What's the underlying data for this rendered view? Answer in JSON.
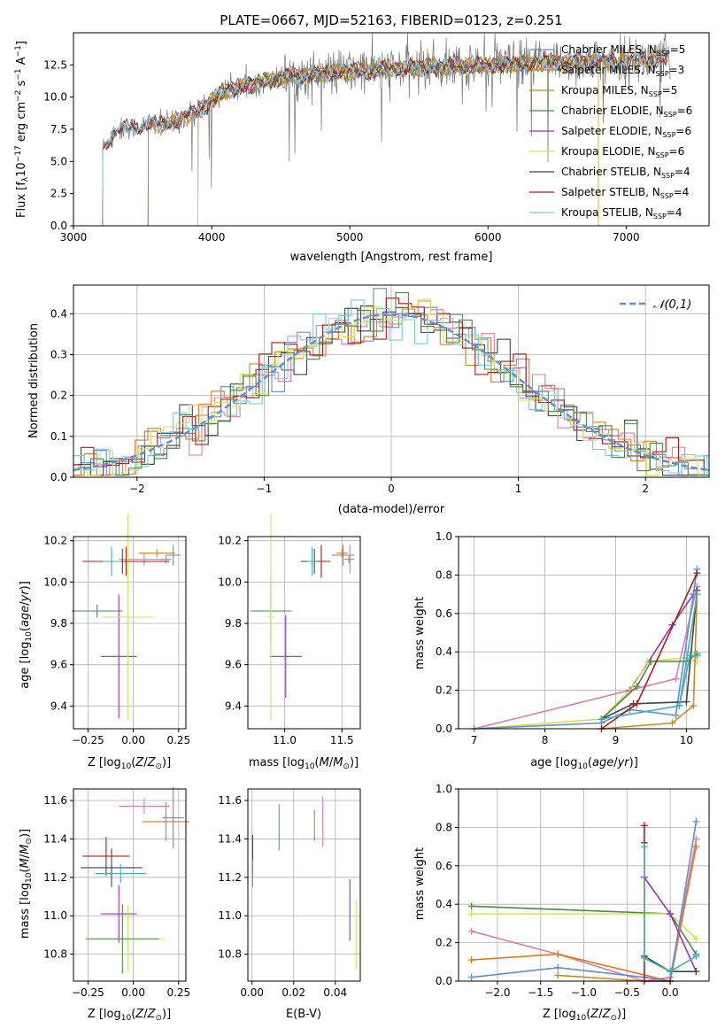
{
  "colors": {
    "Chabrier MILES": "#5b8fd9",
    "Salpeter MILES": "#e07a1f",
    "Kroupa MILES": "#c98a1e",
    "Chabrier ELODIE": "#4a8a4a",
    "Salpeter ELODIE": "#9b30c0",
    "Kroupa ELODIE": "#dde04a",
    "Chabrier STELIB": "#444444",
    "Salpeter STELIB": "#b01818",
    "Kroupa STELIB": "#6fcfe0",
    "pink": "#e07aaa",
    "lime": "#c7e85a",
    "teal": "#3fb0b8",
    "gray_data": "#777777",
    "normal": "#5b8fd9",
    "grid": "#b0b0b0"
  },
  "chart_data": [
    {
      "id": "spectrum",
      "type": "line",
      "title": "PLATE=0667, MJD=52163, FIBERID=0123, z=0.251",
      "xlabel": "wavelength [Angstrom, rest frame]",
      "ylabel": "Flux [f_λ 10^-17 erg cm^-2 s^-1 A^-1]",
      "xlim": [
        3000,
        7600
      ],
      "ylim": [
        0,
        15
      ],
      "xticks": [
        "3000",
        "4000",
        "5000",
        "6000",
        "7000"
      ],
      "yticks": [
        "0.0",
        "2.5",
        "5.0",
        "7.5",
        "10.0",
        "12.5"
      ],
      "grid": false,
      "legend_placement": "upper-right",
      "legend": [
        {
          "base": "Chabrier MILES, N",
          "sub": "SSP",
          "tail": "=5"
        },
        {
          "base": "Salpeter MILES, N",
          "sub": "SSP",
          "tail": "=3"
        },
        {
          "base": "Kroupa MILES, N",
          "sub": "SSP",
          "tail": "=5"
        },
        {
          "base": "Chabrier ELODIE, N",
          "sub": "SSP",
          "tail": "=6"
        },
        {
          "base": "Salpeter ELODIE, N",
          "sub": "SSP",
          "tail": "=6"
        },
        {
          "base": "Kroupa ELODIE, N",
          "sub": "SSP",
          "tail": "=6"
        },
        {
          "base": "Chabrier STELIB, N",
          "sub": "SSP",
          "tail": "=4"
        },
        {
          "base": "Salpeter STELIB, N",
          "sub": "SSP",
          "tail": "=4"
        },
        {
          "base": "Kroupa STELIB, N",
          "sub": "SSP",
          "tail": "=4"
        }
      ],
      "model_starts": {
        "MILES": 3540,
        "ELODIE": 3900,
        "STELIB": 3210
      },
      "continuum": [
        [
          3210,
          6.0
        ],
        [
          3300,
          7.4
        ],
        [
          3500,
          7.8
        ],
        [
          3700,
          8.0
        ],
        [
          3850,
          8.6
        ],
        [
          3950,
          9.3
        ],
        [
          4100,
          10.5
        ],
        [
          4500,
          11.5
        ],
        [
          5000,
          12.0
        ],
        [
          5500,
          12.3
        ],
        [
          6000,
          12.5
        ],
        [
          6500,
          12.7
        ],
        [
          7000,
          12.8
        ],
        [
          7300,
          13.0
        ]
      ]
    },
    {
      "id": "residuals",
      "type": "histogram",
      "xlabel": "(data-model)/error",
      "ylabel": "Normed distribution",
      "xlim": [
        -2.5,
        2.5
      ],
      "ylim": [
        0,
        0.47
      ],
      "xticks": [
        "−2",
        "−1",
        "0",
        "1",
        "2"
      ],
      "yticks": [
        "0.0",
        "0.1",
        "0.2",
        "0.3",
        "0.4"
      ],
      "grid": true,
      "legend_placement": "upper-right",
      "legend_label": "𝒩(0,1)",
      "bin_width": 0.1
    },
    {
      "id": "age_vs_Z",
      "type": "scatter",
      "xlabel": "Z [log10(Z/Z⊙)]",
      "ylabel": "age  [log10(age/yr)]",
      "xlim": [
        -0.33,
        0.29
      ],
      "ylim": [
        9.29,
        10.22
      ],
      "xticks": [
        "−0.25",
        "0.00",
        "0.25"
      ],
      "yticks": [
        "9.4",
        "9.6",
        "9.8",
        "10.0",
        "10.2"
      ],
      "points": [
        {
          "c": "Chabrier MILES",
          "x": 0.22,
          "xe": 0.04,
          "y": 10.13,
          "ye": 0.05
        },
        {
          "c": "Salpeter MILES",
          "x": 0.13,
          "xe": 0.1,
          "y": 10.14,
          "ye": 0.02
        },
        {
          "c": "Kroupa MILES",
          "x": 0.18,
          "xe": 0.03,
          "y": 10.11,
          "ye": 0.02
        },
        {
          "c": "pink",
          "x": 0.06,
          "xe": 0.14,
          "y": 10.11,
          "ye": 0.03
        },
        {
          "c": "Chabrier ELODIE",
          "x": -0.2,
          "xe": 0.14,
          "y": 9.86,
          "ye": 0.03
        },
        {
          "c": "Salpeter ELODIE",
          "x": -0.08,
          "xe": 0.1,
          "y": 9.64,
          "ye": 0.3
        },
        {
          "c": "lime",
          "x": -0.03,
          "xe": 0.14,
          "y": 9.83,
          "ye": 0.5
        },
        {
          "c": "Chabrier STELIB",
          "x": -0.06,
          "xe": 0.2,
          "y": 10.1,
          "ye": 0.06
        },
        {
          "c": "Salpeter STELIB",
          "x": -0.04,
          "xe": 0.24,
          "y": 10.1,
          "ye": 0.07
        },
        {
          "c": "teal",
          "x": -0.12,
          "xe": 0.05,
          "y": 10.1,
          "ye": 0.07
        }
      ]
    },
    {
      "id": "age_vs_mass",
      "type": "scatter",
      "xlabel": "mass [log10(M/M⊙)]",
      "ylabel": "",
      "xlim": [
        10.68,
        11.66
      ],
      "ylim": [
        9.29,
        10.22
      ],
      "xticks": [
        "11.0",
        "11.5"
      ],
      "yticks": [
        "9.4",
        "9.6",
        "9.8",
        "10.0",
        "10.2"
      ],
      "points": [
        {
          "c": "Chabrier MILES",
          "x": 11.51,
          "xe": 0.1,
          "y": 10.13,
          "ye": 0.05
        },
        {
          "c": "Salpeter MILES",
          "x": 11.5,
          "xe": 0.05,
          "y": 10.14,
          "ye": 0.02
        },
        {
          "c": "Kroupa MILES",
          "x": 11.56,
          "xe": 0.04,
          "y": 10.11,
          "ye": 0.02
        },
        {
          "c": "pink",
          "x": 11.57,
          "xe": 0.04,
          "y": 10.11,
          "ye": 0.07
        },
        {
          "c": "Chabrier ELODIE",
          "x": 10.88,
          "xe": 0.18,
          "y": 9.86,
          "ye": 0.17
        },
        {
          "c": "Salpeter ELODIE",
          "x": 11.01,
          "xe": 0.14,
          "y": 9.64,
          "ye": 0.2
        },
        {
          "c": "lime",
          "x": 10.88,
          "xe": 0.03,
          "y": 9.83,
          "ye": 0.5
        },
        {
          "c": "Chabrier STELIB",
          "x": 11.26,
          "xe": 0.12,
          "y": 10.1,
          "ye": 0.06
        },
        {
          "c": "Salpeter STELIB",
          "x": 11.32,
          "xe": 0.08,
          "y": 10.1,
          "ye": 0.08
        },
        {
          "c": "teal",
          "x": 11.24,
          "xe": 0.04,
          "y": 10.1,
          "ye": 0.07
        }
      ]
    },
    {
      "id": "mass_weight_vs_age",
      "type": "line",
      "xlabel": "age  [log10(age/yr)]",
      "ylabel": "mass weight",
      "xlim": [
        6.78,
        10.32
      ],
      "ylim": [
        0,
        1
      ],
      "xticks": [
        "7",
        "8",
        "9",
        "10"
      ],
      "yticks": [
        "0.0",
        "0.2",
        "0.4",
        "0.6",
        "0.8",
        "1.0"
      ],
      "grid": true,
      "series": [
        {
          "c": "pink",
          "x": [
            7.0,
            9.85,
            10.15
          ],
          "y": [
            0.0,
            0.26,
            0.74
          ]
        },
        {
          "c": "Salpeter ELODIE",
          "x": [
            8.8,
            9.2,
            9.8,
            10.1
          ],
          "y": [
            0.05,
            0.2,
            0.54,
            0.7
          ]
        },
        {
          "c": "Kroupa ELODIE",
          "x": [
            7.0,
            8.8,
            9.25,
            9.45,
            10.0,
            10.15
          ],
          "y": [
            0.0,
            0.05,
            0.22,
            0.35,
            0.37,
            0.35
          ]
        },
        {
          "c": "Chabrier ELODIE",
          "x": [
            8.8,
            9.3,
            9.5,
            10.0,
            10.15
          ],
          "y": [
            0.05,
            0.22,
            0.35,
            0.35,
            0.39
          ]
        },
        {
          "c": "Kroupa MILES",
          "x": [
            8.8,
            9.8,
            10.1,
            10.15
          ],
          "y": [
            0.0,
            0.03,
            0.12,
            0.7
          ]
        },
        {
          "c": "Chabrier MILES",
          "x": [
            7.0,
            8.8,
            9.2,
            9.85,
            10.15
          ],
          "y": [
            0.0,
            0.03,
            0.1,
            0.07,
            0.83
          ]
        },
        {
          "c": "Chabrier STELIB",
          "x": [
            8.8,
            9.25,
            10.0,
            10.15
          ],
          "y": [
            0.05,
            0.13,
            0.14,
            0.72
          ]
        },
        {
          "c": "Salpeter STELIB",
          "x": [
            8.8,
            9.3,
            10.15
          ],
          "y": [
            0.0,
            0.13,
            0.81
          ]
        },
        {
          "c": "teal",
          "x": [
            8.8,
            9.9,
            10.15
          ],
          "y": [
            0.05,
            0.12,
            0.7
          ]
        },
        {
          "c": "teal",
          "x": [
            9.9,
            10.05,
            10.15
          ],
          "y": [
            0.12,
            0.38,
            0.38
          ]
        }
      ]
    },
    {
      "id": "mass_vs_Z",
      "type": "scatter",
      "xlabel": "Z [log10(Z/Z⊙)]",
      "ylabel": "mass [log10(M/M⊙)]",
      "xlim": [
        -0.33,
        0.29
      ],
      "ylim": [
        10.66,
        11.66
      ],
      "xticks": [
        "−0.25",
        "0.00",
        "0.25"
      ],
      "yticks": [
        "10.8",
        "11.0",
        "11.2",
        "11.4",
        "11.6"
      ],
      "points": [
        {
          "c": "Chabrier MILES",
          "x": 0.22,
          "xe": 0.06,
          "y": 11.51,
          "ye": 0.16
        },
        {
          "c": "Salpeter MILES",
          "x": 0.18,
          "xe": 0.13,
          "y": 11.49,
          "ye": 0.1
        },
        {
          "c": "pink",
          "x": 0.06,
          "xe": 0.14,
          "y": 11.57,
          "ye": 0.04
        },
        {
          "c": "Chabrier STELIB",
          "x": -0.12,
          "xe": 0.17,
          "y": 11.25,
          "ye": 0.1
        },
        {
          "c": "Salpeter STELIB",
          "x": -0.15,
          "xe": 0.13,
          "y": 11.31,
          "ye": 0.1
        },
        {
          "c": "teal",
          "x": -0.07,
          "xe": 0.14,
          "y": 11.22,
          "ye": 0.05
        },
        {
          "c": "Salpeter ELODIE",
          "x": -0.08,
          "xe": 0.1,
          "y": 11.01,
          "ye": 0.15
        },
        {
          "c": "lime",
          "x": -0.03,
          "xe": 0.2,
          "y": 10.88,
          "ye": 0.17
        },
        {
          "c": "Chabrier ELODIE",
          "x": -0.06,
          "xe": 0.2,
          "y": 10.88,
          "ye": 0.18
        }
      ]
    },
    {
      "id": "mass_vs_ebv",
      "type": "scatter",
      "xlabel": "E(B-V)",
      "ylabel": "",
      "xlim": [
        -0.002,
        0.052
      ],
      "ylim": [
        10.66,
        11.66
      ],
      "xticks": [
        "0.00",
        "0.02",
        "0.04"
      ],
      "yticks": [
        "10.8",
        "11.0",
        "11.2",
        "11.4",
        "11.6"
      ],
      "points": [
        {
          "c": "Salpeter STELIB",
          "x": 0.0003,
          "y": 11.32,
          "ye": 0.1
        },
        {
          "c": "teal",
          "x": 0.0003,
          "y": 11.22,
          "ye": 0.07
        },
        {
          "c": "Chabrier MILES",
          "x": 0.013,
          "y": 11.46,
          "ye": 0.12
        },
        {
          "c": "Salpeter MILES",
          "x": 0.03,
          "y": 11.47,
          "ye": 0.08
        },
        {
          "c": "pink",
          "x": 0.034,
          "y": 11.49,
          "ye": 0.13
        },
        {
          "c": "Salpeter ELODIE",
          "x": 0.047,
          "y": 11.03,
          "ye": 0.16
        },
        {
          "c": "lime",
          "x": 0.05,
          "y": 10.9,
          "ye": 0.18
        }
      ]
    },
    {
      "id": "mass_weight_vs_Z",
      "type": "line",
      "xlabel": "Z [log10(Z/Z⊙)]",
      "ylabel": "mass weight",
      "xlim": [
        -2.45,
        0.45
      ],
      "ylim": [
        0,
        1
      ],
      "xticks": [
        "−2.0",
        "−1.5",
        "−1.0",
        "−0.5",
        "0.0"
      ],
      "yticks": [
        "0.0",
        "0.2",
        "0.4",
        "0.6",
        "0.8",
        "1.0"
      ],
      "grid": true,
      "series": [
        {
          "c": "Chabrier ELODIE",
          "x": [
            -2.3,
            0.0,
            0.3
          ],
          "y": [
            0.39,
            0.35,
            0.14
          ]
        },
        {
          "c": "Kroupa ELODIE",
          "x": [
            -2.3,
            0.0,
            0.3
          ],
          "y": [
            0.35,
            0.35,
            0.22
          ]
        },
        {
          "c": "pink",
          "x": [
            -2.3,
            -1.3,
            -0.3,
            0.0,
            0.3
          ],
          "y": [
            0.26,
            0.14,
            0.0,
            0.02,
            0.74
          ]
        },
        {
          "c": "Salpeter MILES",
          "x": [
            -2.3,
            -1.3,
            0.0,
            0.3
          ],
          "y": [
            0.11,
            0.14,
            0.0,
            0.7
          ]
        },
        {
          "c": "Chabrier MILES",
          "x": [
            -2.3,
            -1.3,
            -0.3,
            0.0,
            0.3
          ],
          "y": [
            0.02,
            0.07,
            0.02,
            0.0,
            0.83
          ]
        },
        {
          "c": "Kroupa MILES",
          "x": [
            -1.3,
            -0.3,
            0.0
          ],
          "y": [
            0.03,
            0.0,
            0.0
          ]
        },
        {
          "c": "Salpeter ELODIE",
          "x": [
            -0.3,
            0.0,
            0.3
          ],
          "y": [
            0.54,
            0.35,
            0.05
          ]
        },
        {
          "c": "Salpeter STELIB",
          "x": [
            -0.3,
            -0.3,
            0.0
          ],
          "y": [
            0.81,
            0.0,
            0.0
          ]
        },
        {
          "c": "Chabrier STELIB",
          "x": [
            -0.3,
            -0.3,
            0.0,
            0.3
          ],
          "y": [
            0.72,
            0.13,
            0.05,
            0.05
          ]
        },
        {
          "c": "teal",
          "x": [
            -0.3,
            -0.3,
            0.0,
            0.3
          ],
          "y": [
            0.7,
            0.12,
            0.05,
            0.13
          ]
        }
      ]
    }
  ]
}
